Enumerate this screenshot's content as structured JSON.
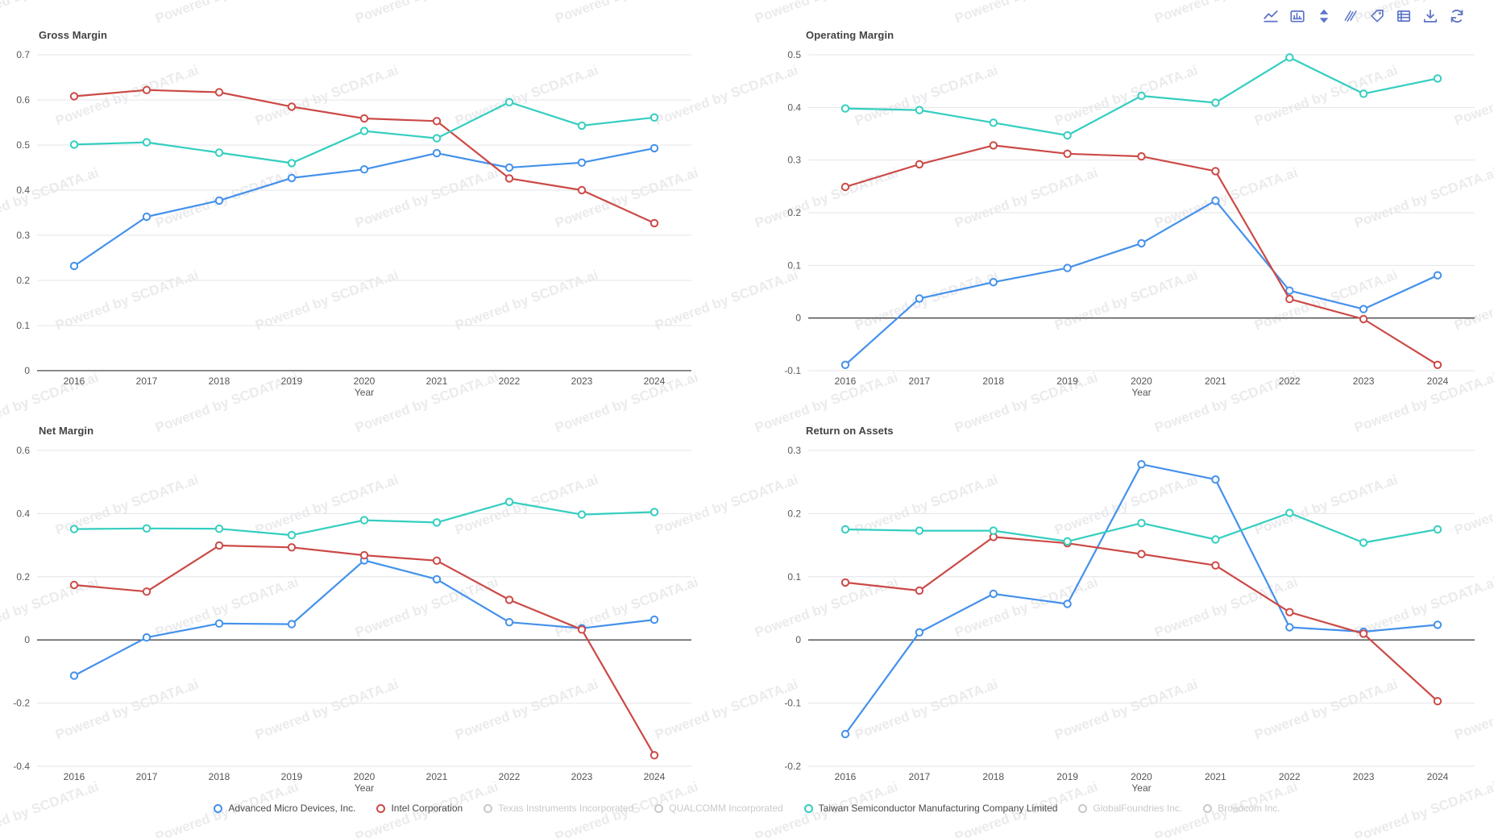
{
  "watermark": {
    "text": "Powered by SCDATA.ai"
  },
  "toolbar": {
    "icons": [
      {
        "name": "line-chart-icon"
      },
      {
        "name": "bar-chart-icon"
      },
      {
        "name": "stack-icon"
      },
      {
        "name": "tiled-icon"
      },
      {
        "name": "label-tag-icon"
      },
      {
        "name": "data-view-icon"
      },
      {
        "name": "download-icon"
      },
      {
        "name": "restore-icon"
      }
    ]
  },
  "legend": {
    "items": [
      {
        "label": "Advanced Micro Devices, Inc.",
        "color": "#4491EB",
        "active": true
      },
      {
        "label": "Intel Corporation",
        "color": "#CB4A47",
        "active": true
      },
      {
        "label": "Texas Instruments Incorporated",
        "color": "#C9C9C9",
        "active": false
      },
      {
        "label": "QUALCOMM Incorporated",
        "color": "#C9C9C9",
        "active": false
      },
      {
        "label": "Taiwan Semiconductor Manufacturing Company Limited",
        "color": "#34CEC0",
        "active": true
      },
      {
        "label": "GlobalFoundries Inc.",
        "color": "#C9C9C9",
        "active": false
      },
      {
        "label": "Broadcom Inc.",
        "color": "#C9C9C9",
        "active": false
      }
    ]
  },
  "chart_data": [
    {
      "type": "line",
      "title": "Gross Margin",
      "xlabel": "Year",
      "x": [
        "2016",
        "2017",
        "2018",
        "2019",
        "2020",
        "2021",
        "2022",
        "2023",
        "2024"
      ],
      "ylim": [
        0,
        0.7
      ],
      "ystep": 0.1,
      "grid": true,
      "series": [
        {
          "name": "Advanced Micro Devices, Inc.",
          "color": "#4491EB",
          "values": [
            0.232,
            0.341,
            0.377,
            0.427,
            0.446,
            0.482,
            0.45,
            0.461,
            0.493
          ]
        },
        {
          "name": "Intel Corporation",
          "color": "#CB4A47",
          "values": [
            0.608,
            0.622,
            0.617,
            0.585,
            0.559,
            0.553,
            0.426,
            0.4,
            0.327
          ]
        },
        {
          "name": "Taiwan Semiconductor Manufacturing Company Limited",
          "color": "#34CEC0",
          "values": [
            0.501,
            0.506,
            0.483,
            0.46,
            0.531,
            0.515,
            0.595,
            0.543,
            0.561
          ]
        }
      ]
    },
    {
      "type": "line",
      "title": "Operating Margin",
      "xlabel": "Year",
      "x": [
        "2016",
        "2017",
        "2018",
        "2019",
        "2020",
        "2021",
        "2022",
        "2023",
        "2024"
      ],
      "ylim": [
        -0.1,
        0.5
      ],
      "ystep": 0.1,
      "grid": true,
      "series": [
        {
          "name": "Advanced Micro Devices, Inc.",
          "color": "#4491EB",
          "values": [
            -0.089,
            0.037,
            0.068,
            0.095,
            0.142,
            0.223,
            0.052,
            0.017,
            0.081
          ]
        },
        {
          "name": "Intel Corporation",
          "color": "#CB4A47",
          "values": [
            0.249,
            0.292,
            0.328,
            0.312,
            0.307,
            0.279,
            0.036,
            -0.002,
            -0.089
          ]
        },
        {
          "name": "Taiwan Semiconductor Manufacturing Company Limited",
          "color": "#34CEC0",
          "values": [
            0.398,
            0.395,
            0.371,
            0.347,
            0.422,
            0.409,
            0.495,
            0.426,
            0.455
          ]
        }
      ]
    },
    {
      "type": "line",
      "title": "Net Margin",
      "xlabel": "Year",
      "x": [
        "2016",
        "2017",
        "2018",
        "2019",
        "2020",
        "2021",
        "2022",
        "2023",
        "2024"
      ],
      "ylim": [
        -0.4,
        0.6
      ],
      "ystep": 0.2,
      "grid": true,
      "series": [
        {
          "name": "Advanced Micro Devices, Inc.",
          "color": "#4491EB",
          "values": [
            -0.113,
            0.008,
            0.052,
            0.05,
            0.252,
            0.192,
            0.056,
            0.037,
            0.064
          ]
        },
        {
          "name": "Intel Corporation",
          "color": "#CB4A47",
          "values": [
            0.174,
            0.153,
            0.299,
            0.293,
            0.268,
            0.251,
            0.127,
            0.033,
            -0.365
          ]
        },
        {
          "name": "Taiwan Semiconductor Manufacturing Company Limited",
          "color": "#34CEC0",
          "values": [
            0.351,
            0.353,
            0.352,
            0.332,
            0.379,
            0.372,
            0.437,
            0.397,
            0.405
          ]
        }
      ]
    },
    {
      "type": "line",
      "title": "Return on Assets",
      "xlabel": "Year",
      "x": [
        "2016",
        "2017",
        "2018",
        "2019",
        "2020",
        "2021",
        "2022",
        "2023",
        "2024"
      ],
      "ylim": [
        -0.2,
        0.3
      ],
      "ystep": 0.1,
      "grid": true,
      "series": [
        {
          "name": "Advanced Micro Devices, Inc.",
          "color": "#4491EB",
          "values": [
            -0.149,
            0.012,
            0.073,
            0.057,
            0.278,
            0.254,
            0.02,
            0.013,
            0.024
          ]
        },
        {
          "name": "Intel Corporation",
          "color": "#CB4A47",
          "values": [
            0.091,
            0.078,
            0.163,
            0.153,
            0.136,
            0.118,
            0.044,
            0.01,
            -0.097
          ]
        },
        {
          "name": "Taiwan Semiconductor Manufacturing Company Limited",
          "color": "#34CEC0",
          "values": [
            0.175,
            0.173,
            0.173,
            0.156,
            0.185,
            0.159,
            0.201,
            0.154,
            0.175
          ]
        }
      ]
    }
  ]
}
